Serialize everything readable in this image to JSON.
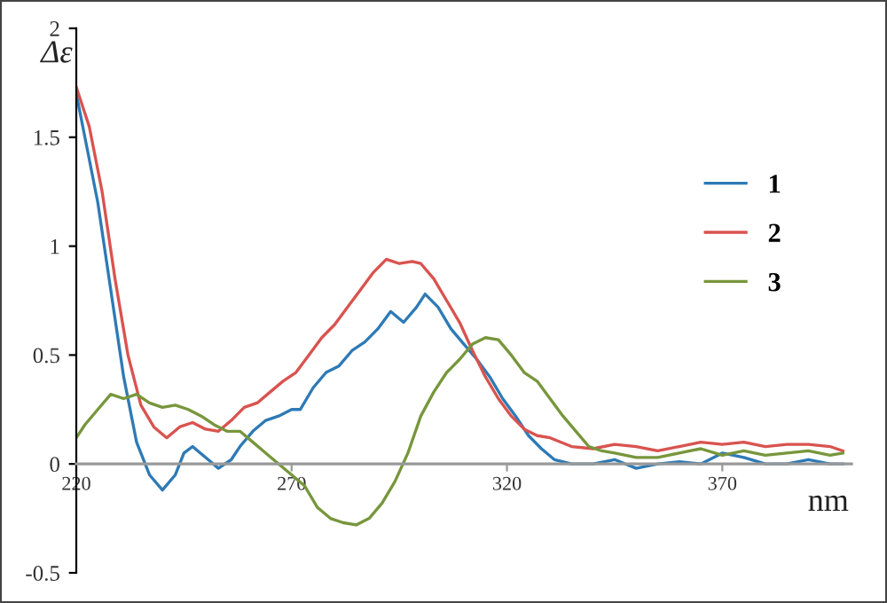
{
  "chart_data": {
    "type": "line",
    "xlabel": "nm",
    "ylabel": "Δε",
    "xlim": [
      220,
      400
    ],
    "ylim": [
      -0.5,
      2
    ],
    "xticks": [
      220,
      270,
      320,
      370
    ],
    "yticks": [
      -0.5,
      0,
      0.5,
      1,
      1.5,
      2
    ],
    "grid": false,
    "legend": "right",
    "marker": "none",
    "line_style": "solid",
    "series": [
      {
        "name": "1",
        "color": "#2e7ab6",
        "x": [
          220,
          222,
          225,
          228,
          231,
          234,
          237,
          240,
          243,
          245,
          247,
          250,
          253,
          256,
          258,
          261,
          264,
          267,
          270,
          272,
          275,
          278,
          281,
          284,
          287,
          290,
          293,
          296,
          299,
          301,
          304,
          307,
          310,
          313,
          316,
          319,
          322,
          325,
          328,
          331,
          335,
          340,
          345,
          350,
          355,
          360,
          365,
          370,
          375,
          380,
          385,
          390,
          395,
          398
        ],
        "values": [
          1.7,
          1.5,
          1.2,
          0.8,
          0.4,
          0.1,
          -0.05,
          -0.12,
          -0.05,
          0.05,
          0.08,
          0.03,
          -0.02,
          0.02,
          0.08,
          0.15,
          0.2,
          0.22,
          0.25,
          0.25,
          0.35,
          0.42,
          0.45,
          0.52,
          0.56,
          0.62,
          0.7,
          0.65,
          0.72,
          0.78,
          0.72,
          0.62,
          0.55,
          0.48,
          0.4,
          0.3,
          0.22,
          0.13,
          0.07,
          0.02,
          0,
          0,
          0.02,
          -0.02,
          0,
          0.01,
          0,
          0.05,
          0.03,
          0,
          0,
          0.02,
          0,
          0
        ]
      },
      {
        "name": "2",
        "color": "#d9534f",
        "x": [
          220,
          223,
          226,
          229,
          232,
          235,
          238,
          241,
          244,
          247,
          250,
          253,
          256,
          259,
          262,
          265,
          268,
          271,
          274,
          277,
          280,
          283,
          286,
          289,
          292,
          295,
          298,
          300,
          303,
          306,
          309,
          312,
          315,
          318,
          321,
          324,
          327,
          330,
          335,
          340,
          345,
          350,
          355,
          360,
          365,
          370,
          375,
          380,
          385,
          390,
          395,
          398
        ],
        "values": [
          1.73,
          1.55,
          1.25,
          0.85,
          0.5,
          0.27,
          0.17,
          0.12,
          0.17,
          0.19,
          0.16,
          0.15,
          0.2,
          0.26,
          0.28,
          0.33,
          0.38,
          0.42,
          0.5,
          0.58,
          0.64,
          0.72,
          0.8,
          0.88,
          0.94,
          0.92,
          0.93,
          0.92,
          0.85,
          0.75,
          0.65,
          0.52,
          0.4,
          0.3,
          0.22,
          0.16,
          0.13,
          0.12,
          0.08,
          0.07,
          0.09,
          0.08,
          0.06,
          0.08,
          0.1,
          0.09,
          0.1,
          0.08,
          0.09,
          0.09,
          0.08,
          0.06
        ]
      },
      {
        "name": "3",
        "color": "#77963c",
        "x": [
          220,
          222,
          225,
          228,
          231,
          234,
          237,
          240,
          243,
          246,
          249,
          252,
          255,
          258,
          261,
          264,
          267,
          270,
          273,
          276,
          279,
          282,
          285,
          288,
          291,
          294,
          297,
          300,
          303,
          306,
          309,
          312,
          315,
          318,
          321,
          324,
          327,
          330,
          333,
          336,
          339,
          342,
          345,
          350,
          355,
          360,
          365,
          370,
          375,
          380,
          385,
          390,
          395,
          398
        ],
        "values": [
          0.12,
          0.18,
          0.25,
          0.32,
          0.3,
          0.32,
          0.28,
          0.26,
          0.27,
          0.25,
          0.22,
          0.18,
          0.15,
          0.15,
          0.1,
          0.05,
          0,
          -0.05,
          -0.1,
          -0.2,
          -0.25,
          -0.27,
          -0.28,
          -0.25,
          -0.18,
          -0.08,
          0.05,
          0.22,
          0.33,
          0.42,
          0.48,
          0.55,
          0.58,
          0.57,
          0.5,
          0.42,
          0.38,
          0.3,
          0.22,
          0.15,
          0.08,
          0.06,
          0.05,
          0.03,
          0.03,
          0.05,
          0.07,
          0.04,
          0.06,
          0.04,
          0.05,
          0.06,
          0.04,
          0.05
        ]
      }
    ]
  }
}
